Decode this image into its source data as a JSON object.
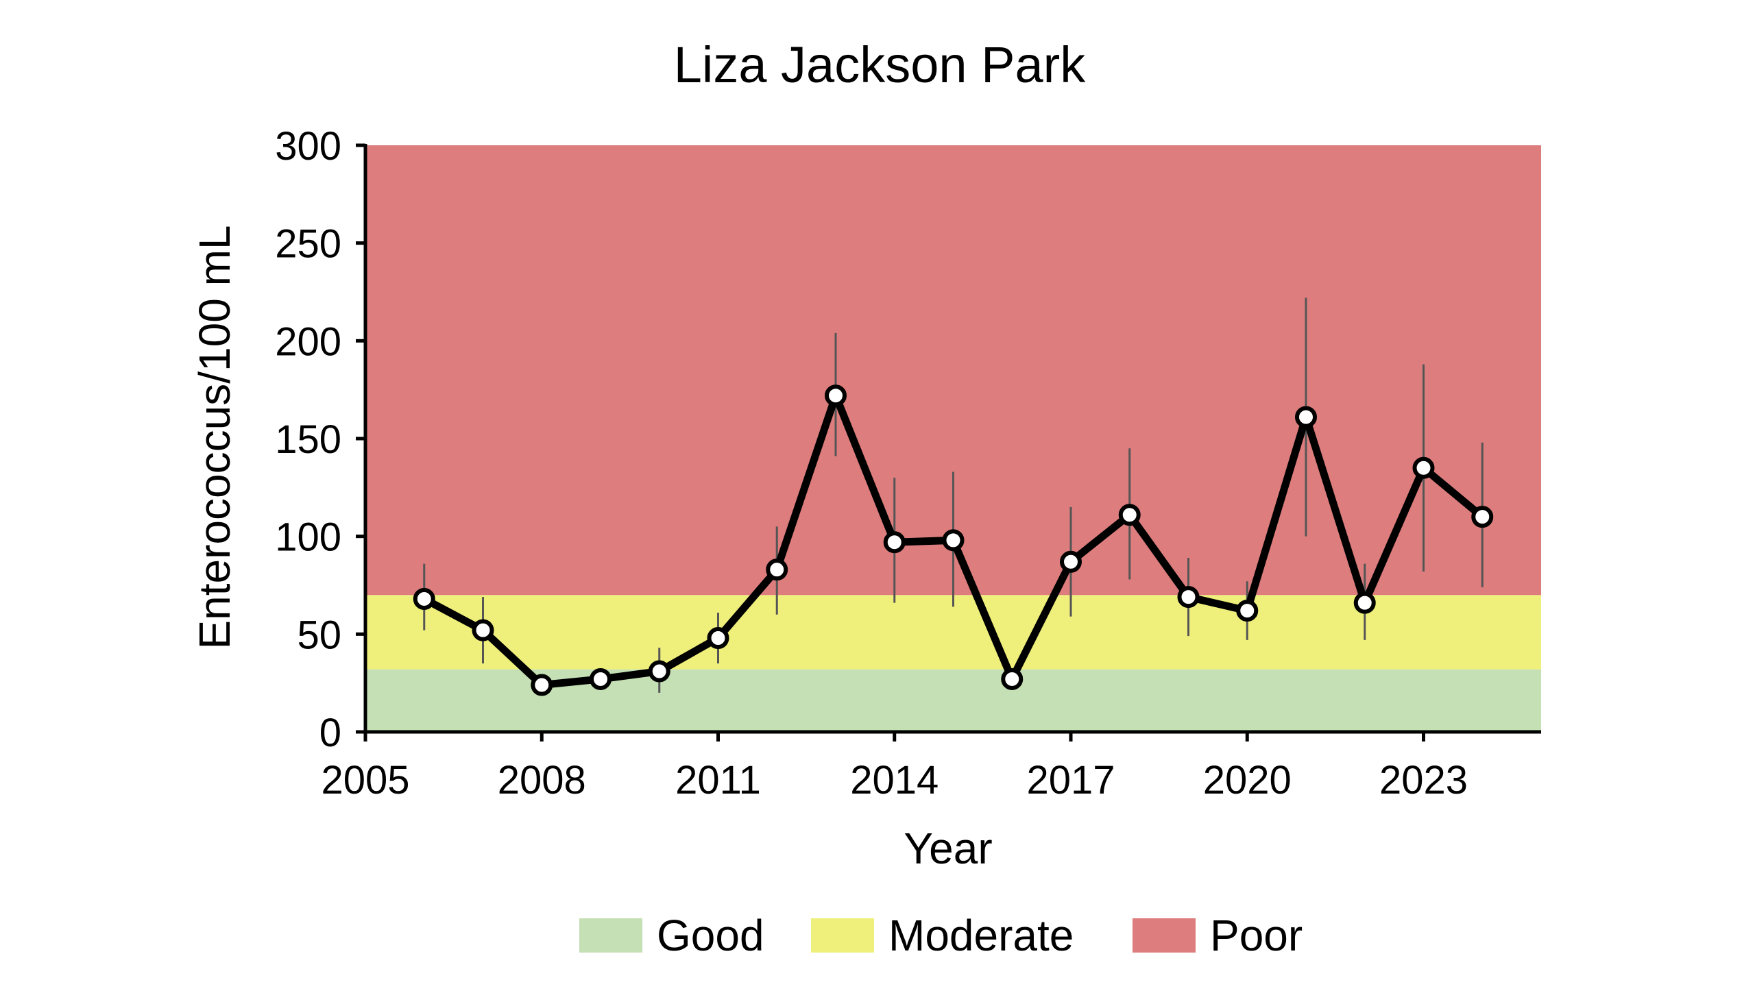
{
  "chart_data": {
    "type": "line",
    "title": "Liza Jackson Park",
    "xlabel": "Year",
    "ylabel": "Enterococcus/100 mL",
    "xlim": [
      2005,
      2025
    ],
    "ylim": [
      0,
      300
    ],
    "xticks": [
      2005,
      2008,
      2011,
      2014,
      2017,
      2020,
      2023
    ],
    "yticks": [
      0,
      50,
      100,
      150,
      200,
      250,
      300
    ],
    "grid": false,
    "legend_position": "bottom",
    "bands": [
      {
        "name": "Good",
        "from": 0,
        "to": 32,
        "color": "#c5e0b4"
      },
      {
        "name": "Moderate",
        "from": 32,
        "to": 70,
        "color": "#eff07b"
      },
      {
        "name": "Poor",
        "from": 70,
        "to": 300,
        "color": "#dd7d7d"
      }
    ],
    "series": [
      {
        "line_color": "#000000",
        "marker_fill": "#ffffff",
        "errorbar_color": "#555555",
        "points": [
          {
            "x": 2006,
            "y": 68,
            "low": 52,
            "high": 86
          },
          {
            "x": 2007,
            "y": 52,
            "low": 35,
            "high": 69
          },
          {
            "x": 2008,
            "y": 24,
            "low": 24,
            "high": 24
          },
          {
            "x": 2009,
            "y": 27,
            "low": 27,
            "high": 27
          },
          {
            "x": 2010,
            "y": 31,
            "low": 20,
            "high": 43
          },
          {
            "x": 2011,
            "y": 48,
            "low": 35,
            "high": 61
          },
          {
            "x": 2012,
            "y": 83,
            "low": 60,
            "high": 105
          },
          {
            "x": 2013,
            "y": 172,
            "low": 141,
            "high": 204
          },
          {
            "x": 2014,
            "y": 97,
            "low": 66,
            "high": 130
          },
          {
            "x": 2015,
            "y": 98,
            "low": 64,
            "high": 133
          },
          {
            "x": 2016,
            "y": 27,
            "low": 27,
            "high": 27
          },
          {
            "x": 2017,
            "y": 87,
            "low": 59,
            "high": 115
          },
          {
            "x": 2018,
            "y": 111,
            "low": 78,
            "high": 145
          },
          {
            "x": 2019,
            "y": 69,
            "low": 49,
            "high": 89
          },
          {
            "x": 2020,
            "y": 62,
            "low": 47,
            "high": 77
          },
          {
            "x": 2021,
            "y": 161,
            "low": 100,
            "high": 222
          },
          {
            "x": 2022,
            "y": 66,
            "low": 47,
            "high": 86
          },
          {
            "x": 2023,
            "y": 135,
            "low": 82,
            "high": 188
          },
          {
            "x": 2024,
            "y": 110,
            "low": 74,
            "high": 148
          }
        ]
      }
    ]
  }
}
